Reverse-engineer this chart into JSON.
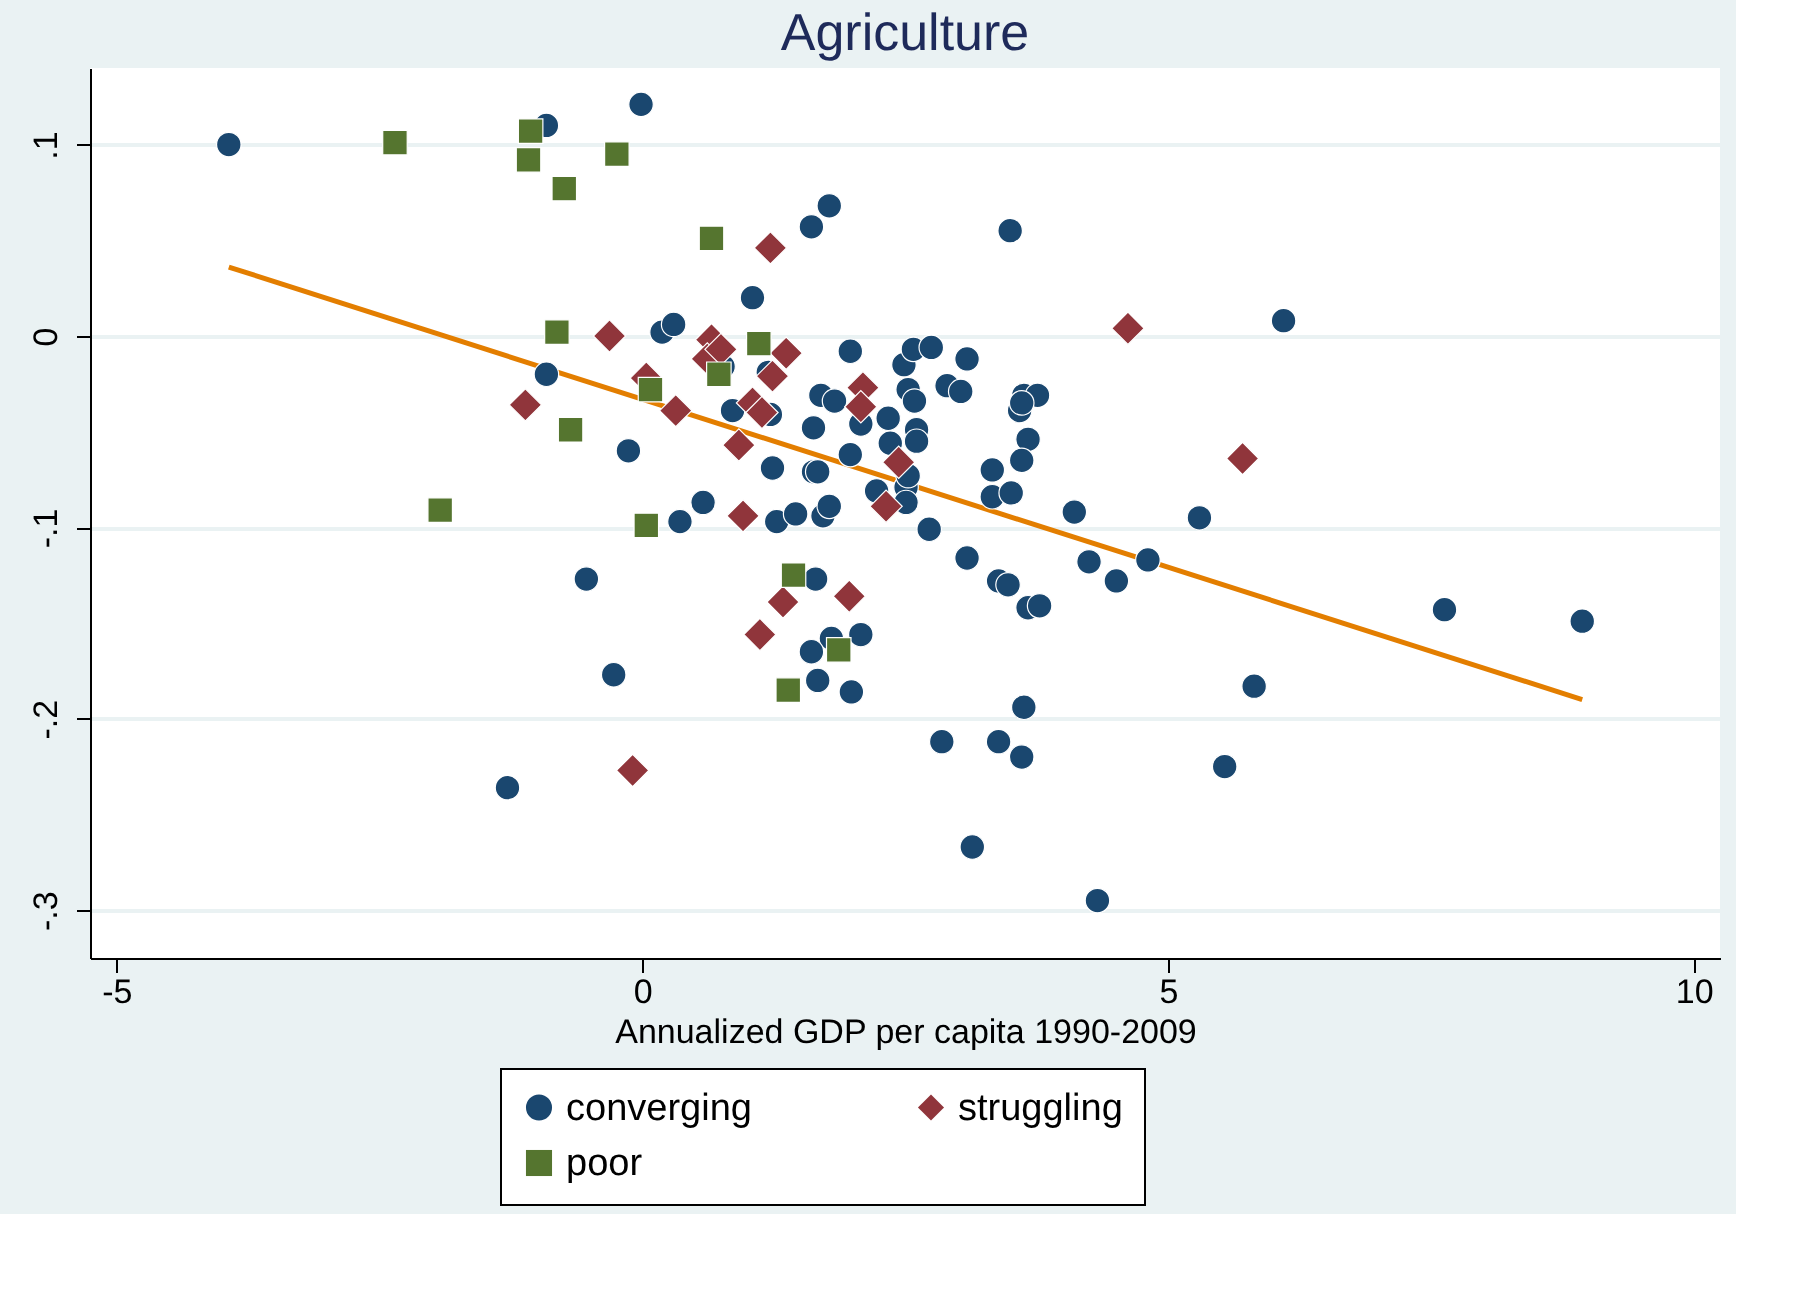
{
  "chart_data": {
    "type": "scatter",
    "title": "Agriculture",
    "xlabel": "Annualized GDP per capita 1990-2009",
    "xlim": [
      -5.25,
      10.25
    ],
    "xticks": [
      {
        "value": -5,
        "label": "-5"
      },
      {
        "value": 0,
        "label": "0"
      },
      {
        "value": 5,
        "label": "5"
      },
      {
        "value": 10,
        "label": "10"
      }
    ],
    "ylim": [
      -0.325,
      0.14
    ],
    "yticks": [
      {
        "value": -0.3,
        "label": "-.3"
      },
      {
        "value": -0.2,
        "label": "-.2"
      },
      {
        "value": -0.1,
        "label": "-.1"
      },
      {
        "value": 0,
        "label": "0"
      },
      {
        "value": 0.1,
        "label": ".1"
      }
    ],
    "grid": "y",
    "legend": "bottom",
    "series": [
      {
        "name": "converging",
        "marker": "circle",
        "color": "#1a476f",
        "x": [
          -3.93,
          -0.91,
          -0.01,
          -0.91,
          -0.13,
          -0.53,
          -0.27,
          -1.28,
          0.19,
          0.3,
          0.36,
          0.58,
          1.05,
          1.61,
          1.78,
          0.86,
          0.77,
          1.2,
          1.22,
          1.63,
          1.7,
          1.83,
          1.24,
          1.28,
          1.46,
          1.63,
          1.67,
          1.72,
          1.78,
          1.98,
          1.98,
          2.08,
          2.23,
          2.34,
          2.36,
          2.51,
          2.53,
          2.51,
          2.53,
          2.49,
          2.61,
          2.61,
          2.59,
          2.58,
          2.75,
          2.9,
          3.03,
          3.09,
          2.73,
          3.09,
          3.33,
          3.33,
          3.39,
          3.48,
          3.5,
          3.51,
          3.59,
          3.63,
          3.76,
          3.61,
          3.67,
          3.61,
          3.67,
          3.78,
          3.63,
          2.85,
          3.39,
          3.61,
          3.14,
          4.33,
          4.11,
          4.25,
          4.51,
          4.81,
          5.3,
          6.1,
          5.54,
          5.82,
          7.63,
          8.94,
          1.65,
          1.8,
          1.61,
          2.08,
          1.67,
          1.99
        ],
        "values": [
          0.1,
          0.11,
          0.121,
          -0.02,
          -0.06,
          -0.127,
          -0.177,
          -0.236,
          0.002,
          0.006,
          -0.097,
          -0.087,
          0.02,
          0.057,
          0.068,
          -0.039,
          -0.016,
          -0.019,
          -0.041,
          -0.048,
          -0.031,
          -0.034,
          -0.069,
          -0.097,
          -0.093,
          -0.071,
          -0.071,
          -0.094,
          -0.089,
          -0.008,
          -0.062,
          -0.046,
          -0.081,
          -0.043,
          -0.056,
          -0.079,
          -0.073,
          -0.087,
          -0.028,
          -0.015,
          -0.049,
          -0.055,
          -0.034,
          -0.007,
          -0.006,
          -0.026,
          -0.029,
          -0.012,
          -0.101,
          -0.116,
          -0.07,
          -0.084,
          -0.128,
          -0.13,
          0.055,
          -0.082,
          -0.039,
          -0.031,
          -0.031,
          -0.035,
          -0.054,
          -0.065,
          -0.142,
          -0.141,
          -0.194,
          -0.212,
          -0.212,
          -0.22,
          -0.267,
          -0.295,
          -0.092,
          -0.118,
          -0.128,
          -0.117,
          -0.095,
          0.008,
          -0.225,
          -0.183,
          -0.143,
          -0.149,
          -0.127,
          -0.158,
          -0.165,
          -0.156,
          -0.18,
          -0.186
        ]
      },
      {
        "name": "struggling",
        "marker": "diamond",
        "color": "#90353b",
        "x": [
          -0.31,
          -1.11,
          0.04,
          0.32,
          1.22,
          0.66,
          0.62,
          0.75,
          1.37,
          1.24,
          2.1,
          2.08,
          1.05,
          1.14,
          0.92,
          2.44,
          2.32,
          0.96,
          4.62,
          5.71,
          1.34,
          1.97,
          1.12,
          -0.09
        ],
        "values": [
          0.0,
          -0.036,
          -0.022,
          -0.039,
          0.046,
          -0.002,
          -0.012,
          -0.007,
          -0.009,
          -0.021,
          -0.027,
          -0.037,
          -0.035,
          -0.04,
          -0.057,
          -0.066,
          -0.089,
          -0.094,
          0.004,
          -0.064,
          -0.139,
          -0.136,
          -0.156,
          -0.227
        ]
      },
      {
        "name": "poor",
        "marker": "square",
        "color": "#55752f",
        "x": [
          -2.35,
          -1.06,
          -1.08,
          -0.24,
          -0.74,
          -0.81,
          0.08,
          -0.68,
          -1.92,
          0.04,
          0.66,
          1.11,
          0.73,
          1.44,
          1.87,
          1.39
        ],
        "values": [
          0.101,
          0.107,
          0.092,
          0.095,
          0.077,
          0.002,
          -0.028,
          -0.049,
          -0.091,
          -0.099,
          0.051,
          -0.004,
          -0.02,
          -0.125,
          -0.164,
          -0.185
        ]
      },
      {
        "type": "line",
        "marker": "none",
        "line_style": "solid",
        "color": "#e37e00",
        "x": [
          -3.93,
          8.94
        ],
        "values": [
          0.036,
          -0.19
        ]
      }
    ]
  }
}
